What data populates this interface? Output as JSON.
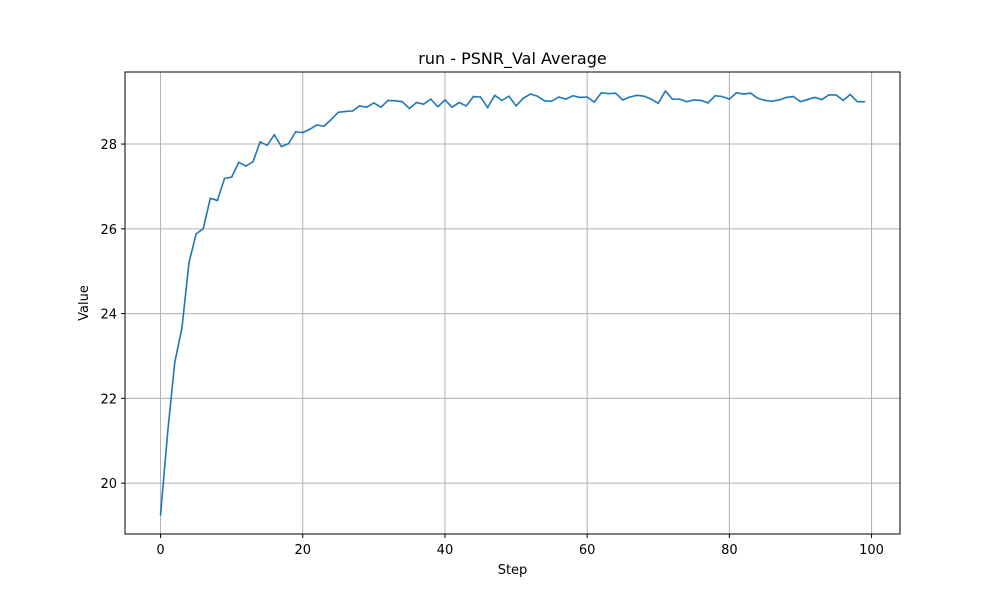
{
  "chart_data": {
    "type": "line",
    "title": "run - PSNR_Val Average",
    "xlabel": "Step",
    "ylabel": "Value",
    "xlim": [
      -5,
      104
    ],
    "ylim": [
      18.8,
      29.7
    ],
    "xticks": [
      0,
      20,
      40,
      60,
      80,
      100
    ],
    "yticks": [
      20,
      22,
      24,
      26,
      28
    ],
    "grid": true,
    "colors": {
      "line": "#1f77b4",
      "grid": "#b0b0b0",
      "axes": "#000000"
    },
    "series": [
      {
        "x": [
          0,
          1,
          2,
          3,
          4,
          5,
          6,
          7,
          8,
          9,
          10,
          11,
          12,
          13,
          14,
          15,
          16,
          17,
          18,
          19,
          20,
          21,
          22,
          23,
          24,
          25,
          26,
          27,
          28,
          29,
          30,
          31,
          32,
          33,
          34,
          35,
          36,
          37,
          38,
          39,
          40,
          41,
          42,
          43,
          44,
          45,
          46,
          47,
          48,
          49,
          50,
          51,
          52,
          53,
          54,
          55,
          56,
          57,
          58,
          59,
          60,
          61,
          62,
          63,
          64,
          65,
          66,
          67,
          68,
          69,
          70,
          71,
          72,
          73,
          74,
          75,
          76,
          77,
          78,
          79,
          80,
          81,
          82,
          83,
          84,
          85,
          86,
          87,
          88,
          89,
          90,
          91,
          92,
          93,
          94,
          95,
          96,
          97,
          98,
          99
        ],
        "y": [
          19.25,
          21.2,
          22.85,
          23.65,
          25.2,
          25.88,
          26.0,
          26.72,
          26.67,
          27.19,
          27.22,
          27.57,
          27.48,
          27.58,
          28.05,
          27.97,
          28.22,
          27.94,
          28.01,
          28.29,
          28.27,
          28.35,
          28.45,
          28.42,
          28.58,
          28.75,
          28.77,
          28.78,
          28.9,
          28.87,
          28.97,
          28.87,
          29.03,
          29.02,
          29.0,
          28.84,
          28.98,
          28.94,
          29.06,
          28.88,
          29.04,
          28.87,
          28.98,
          28.9,
          29.12,
          29.11,
          28.86,
          29.15,
          29.03,
          29.13,
          28.9,
          29.08,
          29.18,
          29.13,
          29.02,
          29.01,
          29.11,
          29.06,
          29.14,
          29.1,
          29.11,
          28.99,
          29.21,
          29.19,
          29.2,
          29.04,
          29.11,
          29.15,
          29.13,
          29.06,
          28.96,
          29.25,
          29.06,
          29.06,
          29.0,
          29.04,
          29.03,
          28.97,
          29.14,
          29.12,
          29.06,
          29.21,
          29.18,
          29.2,
          29.08,
          29.03,
          29.01,
          29.04,
          29.1,
          29.12,
          29.0,
          29.05,
          29.1,
          29.05,
          29.16,
          29.16,
          29.03,
          29.17,
          29.0,
          29.0
        ]
      }
    ]
  }
}
